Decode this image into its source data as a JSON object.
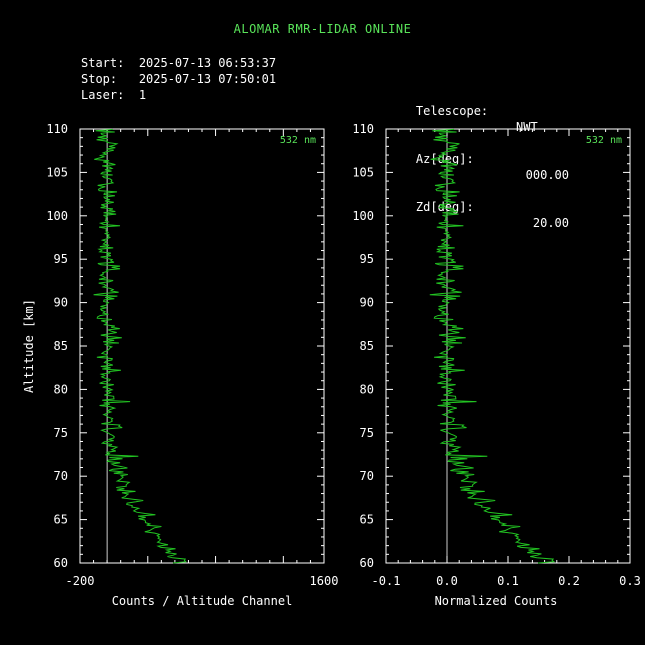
{
  "title": "ALOMAR RMR-LIDAR ONLINE",
  "info": {
    "start_label": "Start:",
    "start_value": "2025-07-13 06:53:37",
    "stop_label": "Stop:",
    "stop_value": "2025-07-13 07:50:01",
    "laser_label": "Laser:",
    "laser_value": "1",
    "telescope_label": "Telescope:",
    "telescope_value": "NWT",
    "az_label": "Az[deg]:",
    "az_value": "000.00",
    "zd_label": "Zd[deg]:",
    "zd_value": "20.00"
  },
  "colors": {
    "trace": "#22c422",
    "title": "#59e359",
    "axes": "#ffffff"
  },
  "chart_data": [
    {
      "type": "line",
      "wavelength_label": "532 nm",
      "xlabel": "Counts / Altitude Channel",
      "ylabel": "Altitude [km]",
      "xlim": [
        -200,
        1600
      ],
      "ylim": [
        60,
        110
      ],
      "x_tick_labels": [
        "-200",
        "1600"
      ],
      "x_ticks": [
        -200,
        1600
      ],
      "y_ticks": [
        60,
        65,
        70,
        75,
        80,
        85,
        90,
        95,
        100,
        105,
        110
      ],
      "zero_line": 0,
      "profile": {
        "altitude": [
          60,
          62,
          64,
          66,
          68,
          70,
          72,
          75,
          80,
          85,
          90,
          95,
          100,
          105,
          110
        ],
        "counts": [
          560,
          430,
          330,
          220,
          150,
          90,
          60,
          30,
          10,
          5,
          0,
          0,
          0,
          0,
          0
        ]
      }
    },
    {
      "type": "line",
      "wavelength_label": "532 nm",
      "xlabel": "Normalized Counts",
      "xlim": [
        -0.1,
        0.3
      ],
      "x_tick_labels": [
        "-0.1",
        "0.0",
        "0.1",
        "0.2",
        "0.3"
      ],
      "x_ticks": [
        -0.1,
        0.0,
        0.1,
        0.2,
        0.3
      ],
      "ylim": [
        60,
        110
      ],
      "y_ticks": [
        60,
        65,
        70,
        75,
        80,
        85,
        90,
        95,
        100,
        105,
        110
      ],
      "zero_line": 0,
      "profile": {
        "altitude": [
          60,
          62,
          64,
          66,
          68,
          70,
          72,
          75,
          80,
          85,
          90,
          95,
          100,
          105,
          110
        ],
        "counts": [
          0.17,
          0.13,
          0.1,
          0.068,
          0.045,
          0.027,
          0.018,
          0.009,
          0.003,
          0.0015,
          0,
          0,
          0,
          0,
          0
        ]
      }
    }
  ]
}
